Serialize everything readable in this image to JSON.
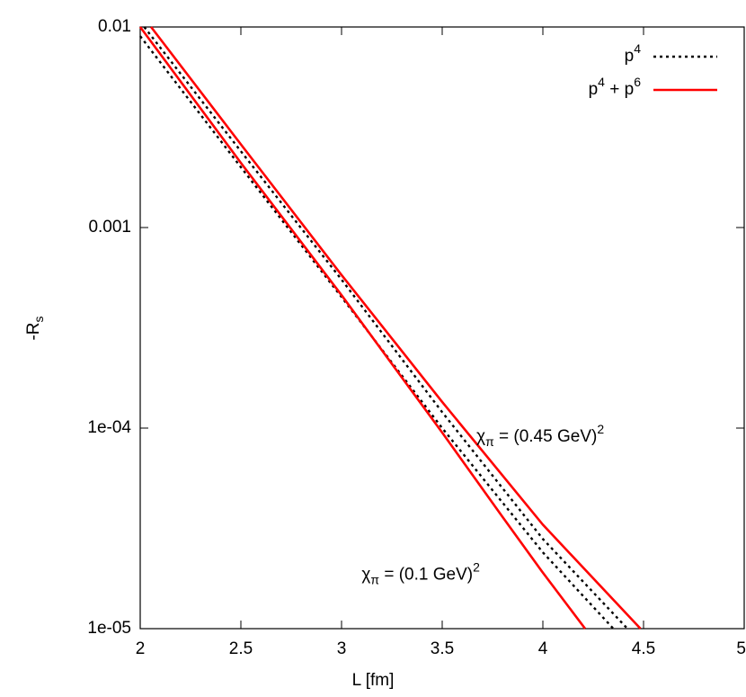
{
  "chart_data": {
    "type": "line",
    "xlabel": "L [fm]",
    "ylabel": "-R_s",
    "xlim": [
      2,
      5
    ],
    "ylim": [
      1e-05,
      0.01
    ],
    "ylog": true,
    "xticks": [
      2,
      2.5,
      3,
      3.5,
      4,
      4.5,
      5
    ],
    "yticks": [
      {
        "value": 1e-05,
        "label": "1e-05"
      },
      {
        "value": 0.0001,
        "label": "1e-04"
      },
      0.001,
      0.01
    ],
    "legend": "upper right",
    "series": [
      {
        "name": "p^4",
        "color": "#000000",
        "dash": "dotted",
        "x": [
          2.02,
          2.5,
          3.0,
          3.5,
          4.0,
          4.42
        ],
        "values": [
          0.01,
          0.0024,
          0.00055,
          0.00012,
          2.8e-05,
          1e-05
        ]
      },
      {
        "name": "p^4 + p^6",
        "color": "#ff0000",
        "dash": "solid",
        "x": [
          2.054,
          2.5,
          3.0,
          3.5,
          4.0,
          4.485
        ],
        "values": [
          0.01,
          0.0026,
          0.00058,
          0.000135,
          3.3e-05,
          1e-05
        ]
      },
      {
        "name": "p^4",
        "color": "#000000",
        "dash": "dotted",
        "x": [
          2.0,
          2.5,
          3.0,
          3.5,
          4.0,
          4.35
        ],
        "values": [
          0.009,
          0.002,
          0.00045,
          0.0001,
          2.4e-05,
          1e-05
        ]
      },
      {
        "name": "p^4 + p^6",
        "color": "#ff0000",
        "dash": "solid",
        "x": [
          2.0,
          2.5,
          3.0,
          3.5,
          3.8,
          4.0,
          4.21
        ],
        "values": [
          0.01,
          0.0021,
          0.00046,
          9.5e-05,
          3.6e-05,
          1.9e-05,
          1e-05
        ]
      }
    ],
    "annotations": [
      {
        "text": "χ_π = (0.45 GeV)^2",
        "x": 3.67,
        "y": 9e-05
      },
      {
        "text": "χ_π = (0.1 GeV)^2",
        "x": 3.1,
        "y": 1.85e-05
      }
    ]
  }
}
